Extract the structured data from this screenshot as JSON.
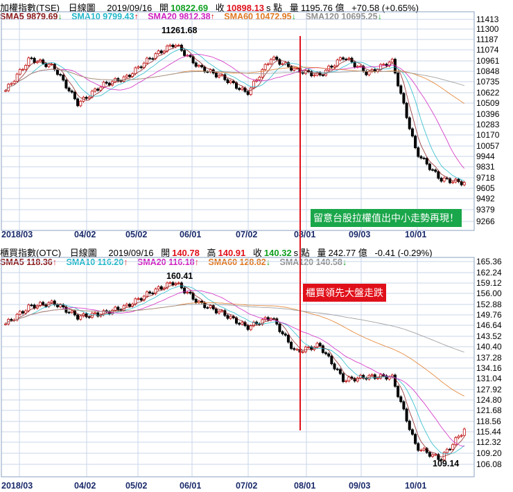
{
  "colors": {
    "sma5": "#8b1a1a",
    "sma10": "#20b8c8",
    "sma20": "#d020c0",
    "sma60": "#e07820",
    "sma120": "#909090",
    "up_arrow": "#e0101a",
    "down_arrow": "#10a020",
    "candle_up": "#ffffff",
    "candle_edge": "#c01010",
    "candle_down": "#000000",
    "annotation_green": "#1aa64a",
    "annotation_red": "#e0101a",
    "marker_line": "#e0101a"
  },
  "top": {
    "name": "加權指數(TSE)",
    "period": "日線圖",
    "date": "2019/09/16",
    "open_label": "開",
    "open": "10822.69",
    "close_label": "收",
    "close": "10898.13",
    "unit": "s 點",
    "vol_label": "量",
    "vol": "1195.76 億",
    "change": "+70.58 (+0.65%)",
    "sma": [
      {
        "label": "SMA5 9879.69",
        "arrow": "↓",
        "dir": "down",
        "color": "#8b1a1a"
      },
      {
        "label": "SMA10 9799.43",
        "arrow": "↑",
        "dir": "up",
        "color": "#20b8c8"
      },
      {
        "label": "SMA20 9812.38",
        "arrow": "↑",
        "dir": "up",
        "color": "#d020c0"
      },
      {
        "label": "SMA60 10472.95",
        "arrow": "↓",
        "dir": "down",
        "color": "#e07820"
      },
      {
        "label": "SMA120 10695.25",
        "arrow": "↓",
        "dir": "down",
        "color": "#909090"
      }
    ],
    "peak_label": "11261.68",
    "annotation": "留意台股拉權值出中小走勢再現！"
  },
  "bottom": {
    "name": "櫃買指數(OTC)",
    "period": "日線圖",
    "date": "2019/09/16",
    "open_label": "開",
    "open": "140.78",
    "high_label": "高",
    "high": "140.91",
    "close_label": "收",
    "close": "140.32",
    "unit": "s 點",
    "vol_label": "量",
    "vol": "242.77 億",
    "change": "-0.41 (-0.29%)",
    "sma": [
      {
        "label": "SMA5 118.36",
        "arrow": "↑",
        "dir": "up",
        "color": "#8b1a1a"
      },
      {
        "label": "SMA10 116.20",
        "arrow": "↑",
        "dir": "up",
        "color": "#20b8c8"
      },
      {
        "label": "SMA20 116.18",
        "arrow": "↑",
        "dir": "up",
        "color": "#d020c0"
      },
      {
        "label": "SMA60 128.82",
        "arrow": "↓",
        "dir": "down",
        "color": "#e07820"
      },
      {
        "label": "SMA120 140.58",
        "arrow": "↓",
        "dir": "down",
        "color": "#909090"
      }
    ],
    "peak_label": "160.41",
    "trough_label": "109.14",
    "annotation": "櫃買領先大盤走跌"
  },
  "chart_data": [
    {
      "type": "line",
      "title": "加權指數(TSE) 日線圖",
      "x_ticks": [
        "2018/03",
        "04/02",
        "05/02",
        "06/01",
        "07/02",
        "08/01",
        "09/03",
        "10/01"
      ],
      "y_ticks": [
        "11413",
        "11300",
        "11187",
        "11074",
        "10961",
        "10848",
        "10735",
        "10622",
        "10509",
        "10396",
        "10283",
        "10170",
        "10057",
        "9944",
        "9831",
        "9718",
        "9605",
        "9492",
        "9379",
        "9266"
      ],
      "ylim": [
        9266,
        11413
      ],
      "grid": true,
      "x_dates": [
        "2018/03/01",
        "03/16",
        "04/02",
        "04/17",
        "05/02",
        "05/17",
        "06/01",
        "06/08",
        "06/18",
        "07/02",
        "07/17",
        "08/01",
        "08/10",
        "08/20",
        "09/03",
        "09/17",
        "10/01",
        "10/11",
        "10/20",
        "10/28"
      ],
      "close": [
        10700,
        11040,
        10950,
        10560,
        10760,
        10840,
        11050,
        11200,
        10950,
        10840,
        10670,
        11050,
        10920,
        10860,
        11060,
        10880,
        11020,
        10050,
        9760,
        9720
      ]
    },
    {
      "type": "line",
      "title": "櫃買指數(OTC) 日線圖",
      "x_ticks": [
        "2018/03",
        "04/02",
        "05/02",
        "06/01",
        "07/02",
        "08/01",
        "09/03",
        "10/01"
      ],
      "y_ticks": [
        "165.36",
        "162.24",
        "159.12",
        "156.00",
        "152.88",
        "149.76",
        "146.64",
        "143.52",
        "140.40",
        "137.28",
        "134.16",
        "131.04",
        "127.92",
        "124.80",
        "121.68",
        "118.56",
        "115.44",
        "112.32",
        "109.20",
        "106.08"
      ],
      "ylim": [
        106.08,
        165.36
      ],
      "grid": true,
      "x_dates": [
        "2018/03/01",
        "03/16",
        "04/02",
        "04/17",
        "05/02",
        "05/17",
        "06/01",
        "06/08",
        "06/18",
        "07/02",
        "07/17",
        "08/01",
        "08/10",
        "08/20",
        "09/03",
        "09/17",
        "10/01",
        "10/11",
        "10/20",
        "10/28"
      ],
      "close": [
        148,
        153,
        154,
        150,
        151,
        153,
        157,
        160,
        154,
        151,
        147,
        150,
        140,
        142,
        132,
        133,
        133,
        113,
        109.5,
        118
      ]
    }
  ]
}
